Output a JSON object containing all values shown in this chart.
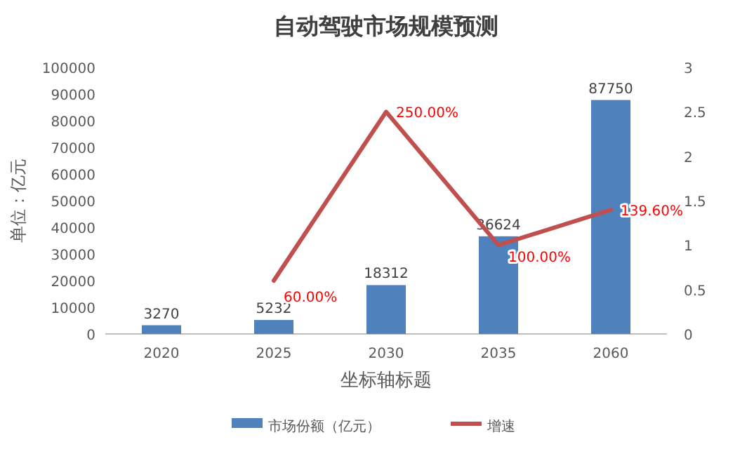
{
  "chart_data": {
    "type": "bar",
    "title": "自动驾驶市场规模预测",
    "xlabel": "坐标轴标题",
    "ylabel": "单位：亿元",
    "categories": [
      "2020",
      "2025",
      "2030",
      "2035",
      "2060"
    ],
    "series": [
      {
        "name": "市场份额（亿元）",
        "color": "#4f81bd",
        "values": [
          3270,
          5232,
          18312,
          36624,
          87750
        ],
        "value_labels": [
          "3270",
          "5232",
          "18312",
          "36624",
          "87750"
        ]
      },
      {
        "name": "增速",
        "type": "line",
        "axis": "y2",
        "color": "#c0504d",
        "values": [
          null,
          0.6,
          2.5,
          1.0,
          1.396
        ],
        "value_labels": [
          null,
          "60.00%",
          "250.00%",
          "100.00%",
          "139.60%"
        ]
      }
    ],
    "ylim": [
      0,
      100000
    ],
    "yticks": [
      0,
      10000,
      20000,
      30000,
      40000,
      50000,
      60000,
      70000,
      80000,
      90000,
      100000
    ],
    "y2lim": [
      0,
      3
    ],
    "y2ticks": [
      0,
      0.5,
      1,
      1.5,
      2,
      2.5,
      3
    ],
    "legend": "bottom"
  }
}
